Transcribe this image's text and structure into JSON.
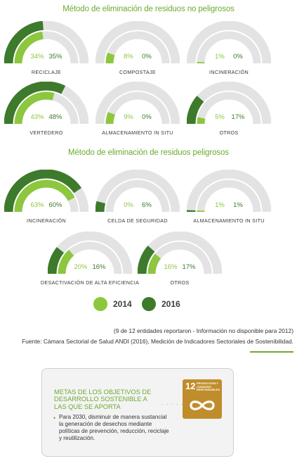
{
  "title_no_peligrosos": "Método de eliminación de residuos no peligrosos",
  "title_peligrosos": "Método de eliminación de residuos peligrosos",
  "colors": {
    "y2014": "#8dc63f",
    "y2016": "#3d7a2c",
    "track": "#e3e3e3",
    "text_green": "#6bab2f"
  },
  "chart_data": [
    {
      "type": "gauge",
      "title": "Método de eliminación de residuos no peligrosos",
      "series_names": [
        "2014",
        "2016"
      ],
      "categories": [
        "RECICLAJE",
        "COMPOSTAJE",
        "INCINERACIÓN",
        "VERTEDERO",
        "ALMACENAMIENTO IN SITU",
        "OTROS"
      ],
      "items": [
        {
          "label": "RECICLAJE",
          "v2014": 34,
          "v2016": 35,
          "t2014": "34%",
          "t2016": "35%"
        },
        {
          "label": "COMPOSTAJE",
          "v2014": 8,
          "v2016": 0,
          "t2014": "8%",
          "t2016": "0%"
        },
        {
          "label": "INCINERACIÓN",
          "v2014": 1,
          "v2016": 0,
          "t2014": "1%",
          "t2016": "0%"
        },
        {
          "label": "VERTEDERO",
          "v2014": 43,
          "v2016": 48,
          "t2014": "43%",
          "t2016": "48%"
        },
        {
          "label": "ALMACENAMIENTO IN SITU",
          "v2014": 9,
          "v2016": 0,
          "t2014": "9%",
          "t2016": "0%"
        },
        {
          "label": "OTROS",
          "v2014": 5,
          "v2016": 17,
          "t2014": "5%",
          "t2016": "17%"
        }
      ]
    },
    {
      "type": "gauge",
      "title": "Método de eliminación de residuos peligrosos",
      "series_names": [
        "2014",
        "2016"
      ],
      "categories": [
        "INCINERACIÓN",
        "CELDA DE SEGURIDAD",
        "ALMACENAMIENTO IN SITU",
        "DESACTIVACIÓN  DE ALTA EFICIENCIA",
        "OTROS"
      ],
      "items": [
        {
          "label": "INCINERACIÓN",
          "v2014": 63,
          "v2016": 60,
          "t2014": "63%",
          "t2016": "60%"
        },
        {
          "label": "CELDA DE SEGURIDAD",
          "v2014": 0,
          "v2016": 6,
          "t2014": "0%",
          "t2016": "6%"
        },
        {
          "label": "ALMACENAMIENTO IN SITU",
          "v2014": 1,
          "v2016": 1,
          "t2014": "1%",
          "t2016": "1%"
        },
        {
          "label": "DESACTIVACIÓN  DE ALTA EFICIENCIA",
          "v2014": 20,
          "v2016": 16,
          "t2014": "20%",
          "t2016": "16%"
        },
        {
          "label": "OTROS",
          "v2014": 16,
          "v2016": 17,
          "t2014": "16%",
          "t2016": "17%"
        }
      ]
    }
  ],
  "legend": {
    "y2014": "2014",
    "y2016": "2016"
  },
  "note_1": "(9 de 12 entidades reportaron - Información no disponible para 2012)",
  "note_2": "Fuente: Cámara Sectorial de Salud ANDI (2016), Medición de Indicadores Sectoriales de Sostenibilidad.",
  "box": {
    "title": "METAS DE LOS OBJETIVOS DE DESARROLLO SOSTENIBLE A LAS QUE SE APORTA",
    "dots": ". . . . .",
    "bullet": "Para 2030, disminuir de manera sustancial la generación de desechos mediante políticas de prevención, reducción, reciclaje y reutilización.",
    "sdg_number": "12",
    "sdg_text": "PRODUCCIÓN Y CONSUMO RESPONSABLES",
    "sdg_icon": "infinity-icon"
  }
}
